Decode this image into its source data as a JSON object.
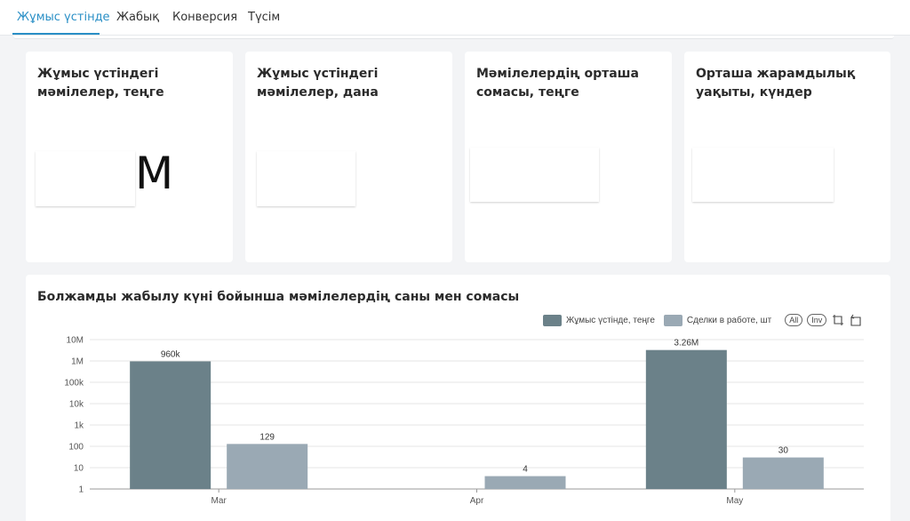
{
  "tabs": [
    {
      "label": "Жұмыс үстінде",
      "active": true
    },
    {
      "label": "Жабық"
    },
    {
      "label": "Конверсия"
    },
    {
      "label": "Түсім"
    }
  ],
  "cards": [
    {
      "title": "Жұмыс үстіндегі мәмілелер, теңге",
      "value": "M"
    },
    {
      "title": "Жұмыс үстіндегі мәмілелер, дана"
    },
    {
      "title": "Мәмілелердің орташа сомасы, теңге"
    },
    {
      "title": "Орташа жарамдылық уақыты, күндер"
    }
  ],
  "chart_title": "Болжамды жабылу күні бойынша мәмілелердің саны мен сомасы",
  "legend": {
    "pill_all": "All",
    "pill_inv": "Inv",
    "tools": [
      "crop-icon",
      "reset-crop-icon"
    ]
  },
  "colors": {
    "accent": "#2a8fc6",
    "series_amount": "#6b8189",
    "series_count": "#9aa9b4"
  },
  "chart_data": {
    "type": "bar",
    "scale": "log",
    "categories": [
      "Mar",
      "Apr",
      "May"
    ],
    "series": [
      {
        "name": "Жұмыс үстінде, теңге",
        "values": [
          960000,
          null,
          3260000
        ],
        "labels": [
          "960k",
          "",
          "3.26M"
        ]
      },
      {
        "name": "Сделки в работе, шт",
        "values": [
          129,
          4,
          30
        ],
        "labels": [
          "129",
          "4",
          "30"
        ]
      }
    ],
    "yticks": [
      {
        "value": 1,
        "label": "1"
      },
      {
        "value": 10,
        "label": "10"
      },
      {
        "value": 100,
        "label": "100"
      },
      {
        "value": 1000,
        "label": "1k"
      },
      {
        "value": 10000,
        "label": "10k"
      },
      {
        "value": 100000,
        "label": "100k"
      },
      {
        "value": 1000000,
        "label": "1M"
      },
      {
        "value": 10000000,
        "label": "10M"
      }
    ],
    "ylim": [
      1,
      10000000
    ],
    "grid": true,
    "legend_position": "top-right"
  }
}
